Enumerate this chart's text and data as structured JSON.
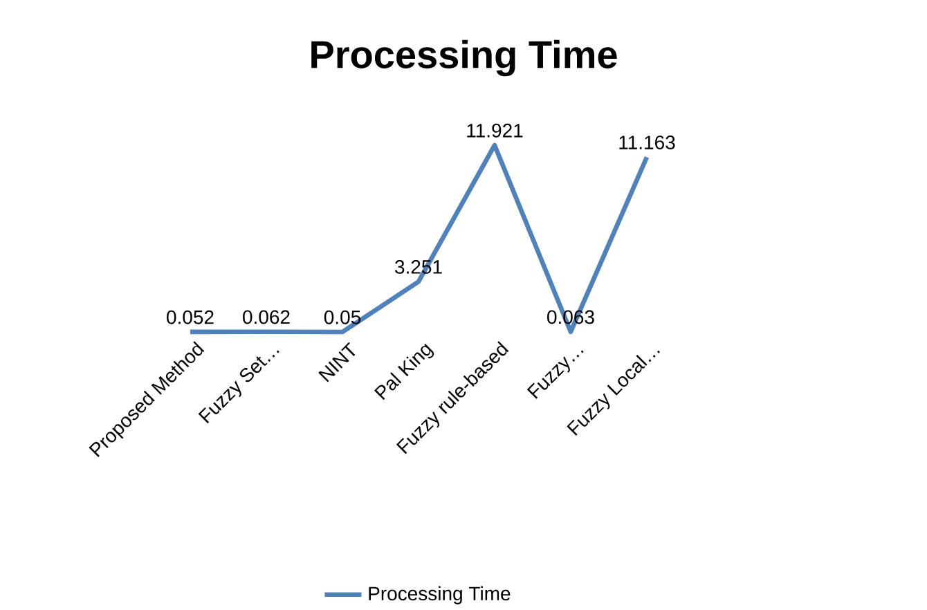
{
  "chart_data": {
    "type": "line",
    "title": "Processing Time",
    "categories": [
      "Proposed Method",
      "Fuzzy Set…",
      "NINT",
      "Pal King",
      "Fuzzy rule-based",
      "Fuzzy…",
      "Fuzzy Local…"
    ],
    "series": [
      {
        "name": "Processing Time",
        "color": "#4f81bd",
        "values": [
          0.052,
          0.062,
          0.05,
          3.251,
          11.921,
          0.063,
          11.163
        ]
      }
    ],
    "data_labels": true,
    "legend": "bottom"
  }
}
